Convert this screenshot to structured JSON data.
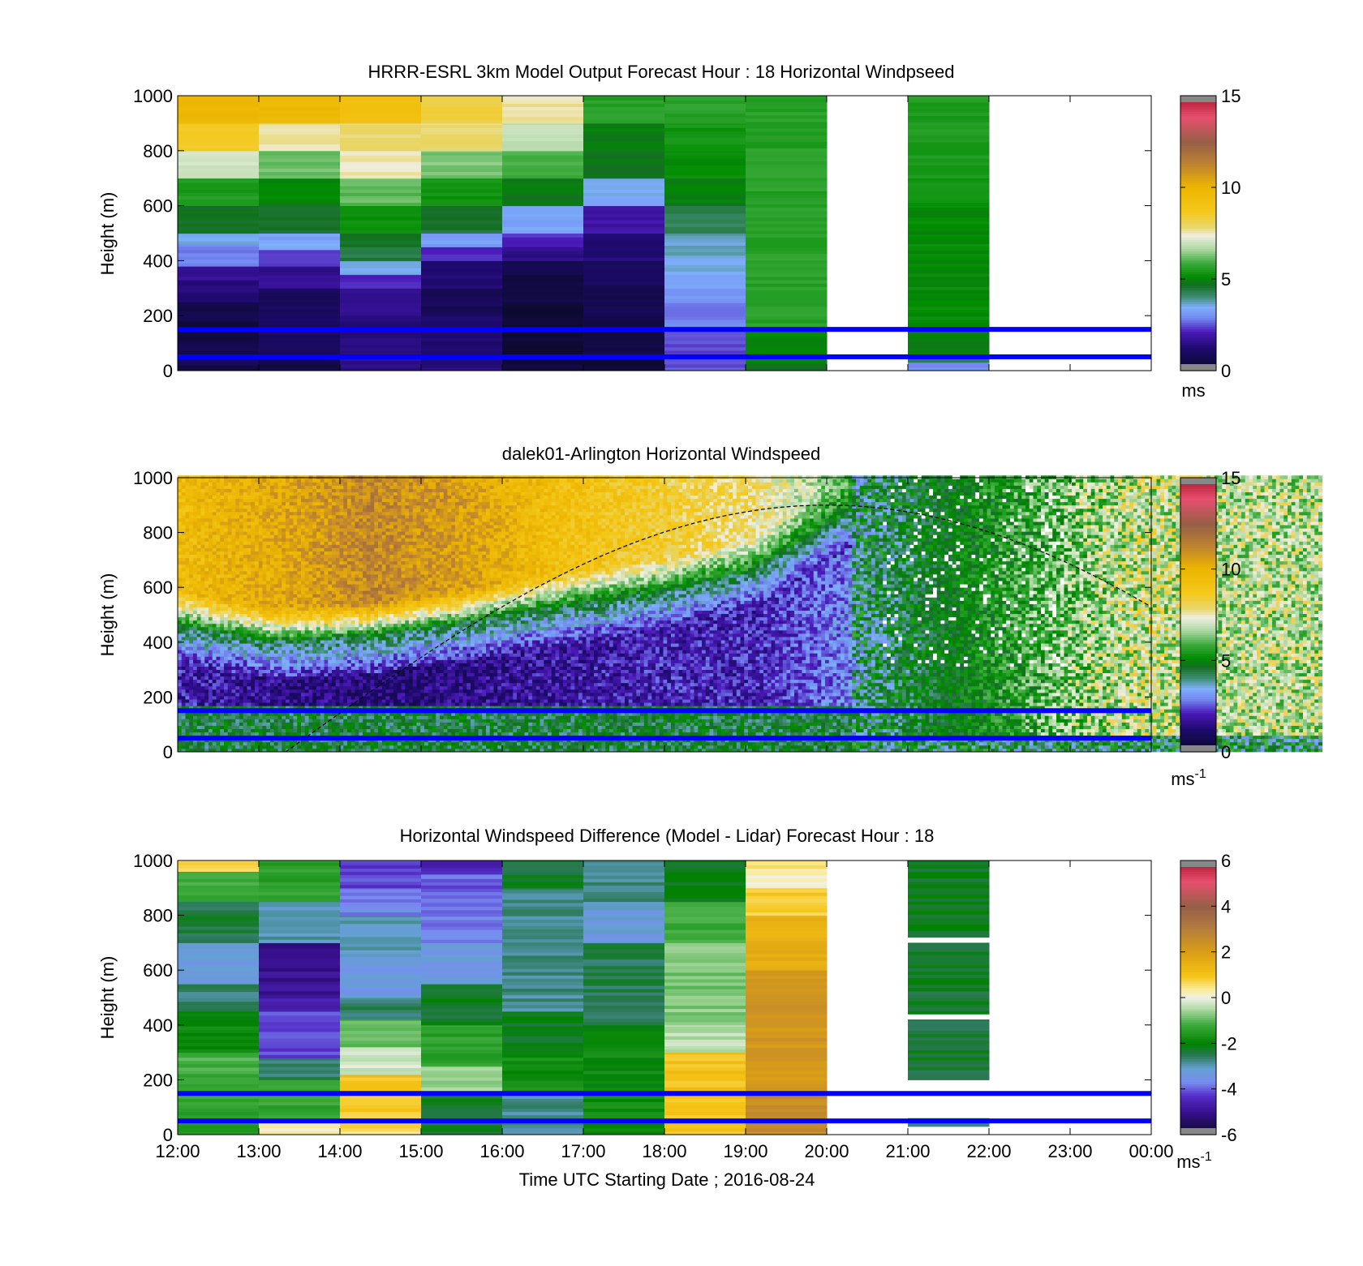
{
  "chart_data": [
    {
      "type": "heatmap",
      "title": "HRRR-ESRL 3km Model Output   Forecast Hour : 18 Horizontal Windpseed",
      "xlabel": "",
      "ylabel": "Height (m)",
      "xlim": [
        "12:00",
        "00:00"
      ],
      "ylim": [
        0,
        1000
      ],
      "yticks": [
        "0",
        "200",
        "400",
        "600",
        "800",
        "1000"
      ],
      "colorbar": {
        "range": [
          0,
          15
        ],
        "ticks": [
          "0",
          "5",
          "10",
          "15"
        ],
        "unit": "ms"
      },
      "reference_lines_m": [
        150,
        50
      ],
      "columns": [
        {
          "t": [
            12,
            13
          ],
          "seg": [
            [
              0,
              20,
              0.5
            ],
            [
              20,
              60,
              0.8
            ],
            [
              60,
              100,
              0.6
            ],
            [
              100,
              180,
              0.4
            ],
            [
              180,
              250,
              0.6
            ],
            [
              250,
              330,
              1.3
            ],
            [
              330,
              380,
              1.7
            ],
            [
              380,
              460,
              2.8
            ],
            [
              460,
              500,
              3.5
            ],
            [
              500,
              600,
              4.7
            ],
            [
              600,
              700,
              5.5
            ],
            [
              700,
              800,
              7.0
            ],
            [
              800,
              900,
              8.6
            ],
            [
              900,
              1000,
              9.8
            ]
          ]
        },
        {
          "t": [
            13,
            14
          ],
          "seg": [
            [
              0,
              40,
              0.5
            ],
            [
              40,
              120,
              0.9
            ],
            [
              120,
              200,
              1.0
            ],
            [
              200,
              300,
              0.9
            ],
            [
              300,
              380,
              1.6
            ],
            [
              380,
              440,
              2.3
            ],
            [
              440,
              500,
              3.3
            ],
            [
              500,
              600,
              4.6
            ],
            [
              600,
              700,
              5.0
            ],
            [
              700,
              800,
              6.2
            ],
            [
              800,
              900,
              7.6
            ],
            [
              900,
              1000,
              9.7
            ]
          ]
        },
        {
          "t": [
            14,
            15
          ],
          "seg": [
            [
              0,
              60,
              1.5
            ],
            [
              60,
              200,
              1.4
            ],
            [
              200,
              300,
              1.6
            ],
            [
              300,
              350,
              2.1
            ],
            [
              350,
              400,
              3.6
            ],
            [
              400,
              450,
              4.4
            ],
            [
              450,
              500,
              4.6
            ],
            [
              500,
              600,
              5.2
            ],
            [
              600,
              700,
              6.1
            ],
            [
              700,
              800,
              7.5
            ],
            [
              800,
              900,
              7.8
            ],
            [
              900,
              1000,
              9.3
            ]
          ]
        },
        {
          "t": [
            15,
            16
          ],
          "seg": [
            [
              0,
              60,
              1.4
            ],
            [
              60,
              200,
              1.2
            ],
            [
              200,
              300,
              0.8
            ],
            [
              300,
              400,
              1.2
            ],
            [
              400,
              450,
              2.2
            ],
            [
              450,
              500,
              3.2
            ],
            [
              500,
              600,
              4.5
            ],
            [
              600,
              700,
              5.3
            ],
            [
              700,
              800,
              6.3
            ],
            [
              800,
              900,
              7.8
            ],
            [
              900,
              1000,
              8.3
            ]
          ]
        },
        {
          "t": [
            16,
            17
          ],
          "seg": [
            [
              0,
              60,
              0.4
            ],
            [
              60,
              250,
              0.3
            ],
            [
              250,
              350,
              0.5
            ],
            [
              350,
              400,
              0.8
            ],
            [
              400,
              450,
              1.5
            ],
            [
              450,
              500,
              2.2
            ],
            [
              500,
              600,
              3.3
            ],
            [
              600,
              700,
              4.8
            ],
            [
              700,
              800,
              5.9
            ],
            [
              800,
              900,
              6.8
            ],
            [
              900,
              1000,
              7.6
            ]
          ]
        },
        {
          "t": [
            17,
            18
          ],
          "seg": [
            [
              0,
              60,
              0.3
            ],
            [
              60,
              200,
              0.5
            ],
            [
              200,
              300,
              0.7
            ],
            [
              300,
              400,
              0.9
            ],
            [
              400,
              500,
              1.3
            ],
            [
              500,
              600,
              1.9
            ],
            [
              600,
              700,
              3.4
            ],
            [
              700,
              800,
              4.7
            ],
            [
              800,
              900,
              4.9
            ],
            [
              900,
              1000,
              5.6
            ]
          ]
        },
        {
          "t": [
            18,
            19
          ],
          "seg": [
            [
              0,
              50,
              2.5
            ],
            [
              50,
              150,
              2.4
            ],
            [
              150,
              250,
              2.8
            ],
            [
              250,
              300,
              3.1
            ],
            [
              300,
              350,
              3.3
            ],
            [
              350,
              420,
              3.5
            ],
            [
              420,
              500,
              3.7
            ],
            [
              500,
              600,
              4.2
            ],
            [
              600,
              700,
              4.9
            ],
            [
              700,
              800,
              5.1
            ],
            [
              800,
              900,
              5.3
            ],
            [
              900,
              1000,
              5.6
            ]
          ]
        },
        {
          "t": [
            19,
            20
          ],
          "seg": [
            [
              0,
              30,
              4.8
            ],
            [
              30,
              150,
              5.0
            ],
            [
              150,
              1000,
              5.6
            ]
          ]
        },
        {
          "t": [
            21,
            22
          ],
          "seg": [
            [
              0,
              30,
              3.0
            ],
            [
              30,
              60,
              4.3
            ],
            [
              60,
              150,
              4.9
            ],
            [
              150,
              600,
              5.1
            ],
            [
              600,
              700,
              5.3
            ],
            [
              700,
              1000,
              5.5
            ]
          ]
        }
      ]
    },
    {
      "type": "heatmap",
      "title": "dalek01-Arlington  Horizontal Windspeed",
      "xlabel": "",
      "ylabel": "Height (m)",
      "xlim": [
        "12:00",
        "00:00"
      ],
      "ylim": [
        0,
        1000
      ],
      "yticks": [
        "0",
        "200",
        "400",
        "600",
        "800",
        "1000"
      ],
      "colorbar": {
        "range": [
          0,
          15
        ],
        "ticks": [
          "0",
          "5",
          "10",
          "15"
        ],
        "unit": "ms",
        "unit_exponent": "-1"
      },
      "reference_lines_m": [
        150,
        50
      ],
      "dashed_curve": {
        "peak_time": "20:00",
        "peak_height_m": 900,
        "zero_time": "13:20"
      },
      "profile_by_hour": [
        {
          "hour": 12,
          "jet_top": 580,
          "upper_max": 9.5,
          "low_min": 1.5
        },
        {
          "hour": 13,
          "jet_top": 520,
          "upper_max": 10.2,
          "low_min": 1.0
        },
        {
          "hour": 14,
          "jet_top": 540,
          "upper_max": 11.2,
          "low_min": 0.8
        },
        {
          "hour": 15,
          "jet_top": 590,
          "upper_max": 10.5,
          "low_min": 1.0
        },
        {
          "hour": 16,
          "jet_top": 650,
          "upper_max": 9.2,
          "low_min": 1.3
        },
        {
          "hour": 17,
          "jet_top": 700,
          "upper_max": 8.5,
          "low_min": 1.5
        },
        {
          "hour": 18,
          "jet_top": 780,
          "upper_max": 7.8,
          "low_min": 1.5
        },
        {
          "hour": 19,
          "jet_top": 1000,
          "upper_max": 6.0,
          "low_min": 2.5
        },
        {
          "hour": 20,
          "jet_top": 1000,
          "upper_max": 5.3,
          "low_min": 4.2
        },
        {
          "hour": 21,
          "jet_top": 1000,
          "upper_max": 7.3,
          "low_min": 4.6
        },
        {
          "hour": 22,
          "jet_top": 1000,
          "upper_max": 8.8,
          "low_min": 5.5
        },
        {
          "hour": 23,
          "jet_top": 1000,
          "upper_max": 8.2,
          "low_min": 5.5
        }
      ]
    },
    {
      "type": "heatmap",
      "title": "Horizontal Windspeed Difference (Model - Lidar) Forecast Hour : 18",
      "xlabel": "Time UTC  Starting Date ; 2016-08-24",
      "ylabel": "Height (m)",
      "xlim": [
        "12:00",
        "00:00"
      ],
      "ylim": [
        0,
        1000
      ],
      "xticks": [
        "12:00",
        "13:00",
        "14:00",
        "15:00",
        "16:00",
        "17:00",
        "18:00",
        "19:00",
        "20:00",
        "21:00",
        "22:00",
        "23:00",
        "00:00"
      ],
      "yticks": [
        "0",
        "200",
        "400",
        "600",
        "800",
        "1000"
      ],
      "colorbar": {
        "range": [
          -6,
          6
        ],
        "ticks": [
          "-6",
          "-4",
          "-2",
          "0",
          "2",
          "4",
          "6"
        ],
        "unit": "ms",
        "unit_exponent": "-1"
      },
      "reference_lines_m": [
        150,
        50
      ],
      "columns": [
        {
          "t": [
            12,
            13
          ],
          "seg": [
            [
              0,
              150,
              -1.4
            ],
            [
              150,
              300,
              -1.2
            ],
            [
              300,
              450,
              -1.9
            ],
            [
              450,
              550,
              -2.7
            ],
            [
              550,
              700,
              -3.3
            ],
            [
              700,
              850,
              -2.4
            ],
            [
              850,
              960,
              -1.2
            ],
            [
              960,
              1000,
              0.8
            ]
          ]
        },
        {
          "t": [
            13,
            14
          ],
          "seg": [
            [
              0,
              60,
              0.2
            ],
            [
              60,
              200,
              -1.4
            ],
            [
              200,
              280,
              -2.6
            ],
            [
              280,
              450,
              -4.2
            ],
            [
              450,
              500,
              -4.6
            ],
            [
              500,
              700,
              -5.0
            ],
            [
              700,
              850,
              -3.0
            ],
            [
              850,
              1000,
              -1.4
            ]
          ]
        },
        {
          "t": [
            14,
            15
          ],
          "seg": [
            [
              0,
              60,
              0.6
            ],
            [
              60,
              150,
              0.8
            ],
            [
              150,
              220,
              1.0
            ],
            [
              220,
              320,
              -0.3
            ],
            [
              320,
              420,
              -1.0
            ],
            [
              420,
              500,
              -2.6
            ],
            [
              500,
              650,
              -3.4
            ],
            [
              650,
              800,
              -3.0
            ],
            [
              800,
              900,
              -3.7
            ],
            [
              900,
              1000,
              -4.2
            ]
          ]
        },
        {
          "t": [
            15,
            16
          ],
          "seg": [
            [
              0,
              150,
              -2.3
            ],
            [
              150,
              250,
              -0.7
            ],
            [
              250,
              400,
              -1.4
            ],
            [
              400,
              550,
              -2.3
            ],
            [
              550,
              700,
              -3.4
            ],
            [
              700,
              850,
              -3.8
            ],
            [
              850,
              950,
              -4.0
            ],
            [
              950,
              1000,
              -4.5
            ]
          ]
        },
        {
          "t": [
            16,
            17
          ],
          "seg": [
            [
              0,
              150,
              -2.8
            ],
            [
              150,
              300,
              -1.8
            ],
            [
              300,
              450,
              -2.2
            ],
            [
              450,
              900,
              -2.8
            ],
            [
              900,
              1000,
              -2.3
            ]
          ]
        },
        {
          "t": [
            17,
            18
          ],
          "seg": [
            [
              0,
              150,
              -1.8
            ],
            [
              150,
              400,
              -1.9
            ],
            [
              400,
              700,
              -2.5
            ],
            [
              700,
              850,
              -3.3
            ],
            [
              850,
              1000,
              -2.8
            ]
          ]
        },
        {
          "t": [
            18,
            19
          ],
          "seg": [
            [
              0,
              150,
              1.0
            ],
            [
              150,
              300,
              1.0
            ],
            [
              300,
              400,
              -0.4
            ],
            [
              400,
              700,
              -0.8
            ],
            [
              700,
              850,
              -1.2
            ],
            [
              850,
              1000,
              -2.2
            ]
          ]
        },
        {
          "t": [
            19,
            20
          ],
          "seg": [
            [
              0,
              150,
              2.5
            ],
            [
              150,
              600,
              2.2
            ],
            [
              600,
              800,
              1.5
            ],
            [
              800,
              900,
              0.8
            ],
            [
              900,
              960,
              0.1
            ],
            [
              960,
              1000,
              0.5
            ]
          ]
        },
        {
          "t": [
            21,
            22
          ],
          "seg": [
            [
              30,
              60,
              -2.5
            ],
            [
              200,
              420,
              -2.4
            ],
            [
              440,
              700,
              -2.3
            ],
            [
              720,
              1000,
              -2.2
            ]
          ]
        }
      ]
    }
  ]
}
